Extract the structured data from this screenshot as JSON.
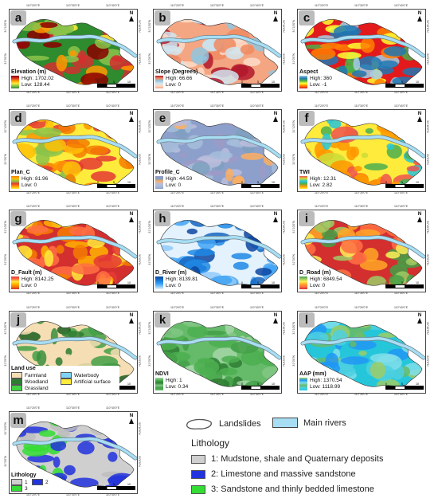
{
  "ticks": {
    "top": [
      "110°20'0\"E",
      "110°30'0\"E",
      "110°40'0\"E"
    ],
    "left": [
      "31°10'0\"N",
      "31°0'0\"N"
    ],
    "right": [
      "31°10'0\"N",
      "31°0'0\"N"
    ],
    "bottom": [
      "110°20'0\"E",
      "110°30'0\"E",
      "110°40'0\"E"
    ]
  },
  "north_label": "N",
  "scale_numbers": [
    "0",
    "5",
    "10"
  ],
  "scale_unit": "km",
  "panels": [
    {
      "letter": "a",
      "title": "Elevation (m)",
      "high": "High: 1702.02",
      "low": "Low: 128.44",
      "colors": [
        "#2e8b2e",
        "#8bc34a",
        "#ffeb3b",
        "#ff9800",
        "#d32f2f",
        "#8b0000"
      ]
    },
    {
      "letter": "b",
      "title": "Slope (Degrees)",
      "high": "High: 66.66",
      "low": "Low: 0",
      "colors": [
        "#f4a582",
        "#fddbc7",
        "#d1e5f0",
        "#92c5de",
        "#ef8a62",
        "#b2182b"
      ]
    },
    {
      "letter": "c",
      "title": "Aspect",
      "high": "High: 360",
      "low": "Low: -1",
      "colors": [
        "#e31a1c",
        "#ff7f00",
        "#ffff33",
        "#4daf4a",
        "#1f78b4",
        "#a6cee3"
      ]
    },
    {
      "letter": "d",
      "title": "Plan_C",
      "high": "High: 81.96",
      "low": "Low: 0",
      "colors": [
        "#ffeb3b",
        "#ff9800",
        "#e53935",
        "#8bc34a",
        "#ffc107",
        "#f57c00"
      ]
    },
    {
      "letter": "e",
      "title": "Profile_C",
      "high": "High: 44.59",
      "low": "Low: 0",
      "colors": [
        "#8da0cb",
        "#a6bddb",
        "#bcbddc",
        "#fdae61",
        "#7fa0c0",
        "#9e9ac8"
      ]
    },
    {
      "letter": "f",
      "title": "TWI",
      "high": "High: 12.31",
      "low": "Low: 2.82",
      "colors": [
        "#ffeb3b",
        "#ff9800",
        "#4caf50",
        "#26c6da",
        "#cddc39",
        "#ef5350"
      ]
    },
    {
      "letter": "g",
      "title": "D_Fault (m)",
      "high": "High: 8142.25",
      "low": "Low: 0",
      "colors": [
        "#d32f2f",
        "#f57c00",
        "#ffb300",
        "#ffeb3b",
        "#ff7043",
        "#e53935"
      ]
    },
    {
      "letter": "h",
      "title": "D_River (m)",
      "high": "High: 8139.81",
      "low": "Low: 0",
      "colors": [
        "#e3f2fd",
        "#90caf9",
        "#42a5f5",
        "#1e88e5",
        "#1565c0",
        "#0d47a1"
      ]
    },
    {
      "letter": "i",
      "title": "D_Road (m)",
      "high": "High: 6849.54",
      "low": "Low: 0",
      "colors": [
        "#d32f2f",
        "#ff7043",
        "#ffa726",
        "#ffee58",
        "#9ccc65",
        "#43a047"
      ]
    },
    {
      "letter": "j",
      "title": "Land use",
      "high": "",
      "low": "",
      "colors": [
        "#f5deb3",
        "#2e7d32",
        "#43a047",
        "#f5deb3",
        "#388e3c",
        "#1b5e20"
      ]
    },
    {
      "letter": "k",
      "title": "NDVI",
      "high": "High: 1",
      "low": "Low: 0.34",
      "colors": [
        "#66bb6a",
        "#43a047",
        "#81c784",
        "#2e7d32",
        "#4caf50",
        "#a5d6a7"
      ]
    },
    {
      "letter": "l",
      "title": "AAP (mm)",
      "high": "High: 1370.54",
      "low": "Low: 1118.99",
      "colors": [
        "#26c6da",
        "#4dd0e1",
        "#66bb6a",
        "#80deea",
        "#2196f3",
        "#9ccc65"
      ]
    },
    {
      "letter": "m",
      "title": "Lithology",
      "high": "",
      "low": "",
      "colors": [
        "#cfcfcf",
        "#2233dd",
        "#33dd33",
        "#2233dd",
        "#bdbdbd",
        "#2233dd"
      ]
    }
  ],
  "landuse_items": [
    {
      "label": "Farmland",
      "color": "#f5deb3"
    },
    {
      "label": "Waterbody",
      "color": "#7fd3f7"
    },
    {
      "label": "Woodland",
      "color": "#2e7d32"
    },
    {
      "label": "Artificial surface",
      "color": "#ffeb3b"
    },
    {
      "label": "Grassland",
      "color": "#43d143"
    }
  ],
  "litho_items": [
    {
      "label": "1",
      "color": "#cfcfcf"
    },
    {
      "label": "2",
      "color": "#2233dd"
    },
    {
      "label": "3",
      "color": "#33dd33"
    }
  ],
  "bottom_legend": {
    "landslides": "Landslides",
    "main_rivers": "Main rivers",
    "lithology_title": "Lithology",
    "items": [
      {
        "label": "1: Mudstone, shale and Quaternary deposits",
        "color": "#cfcfcf"
      },
      {
        "label": "2: Limestone and massive sandstone",
        "color": "#2233dd"
      },
      {
        "label": "3: Sandstone and thinly bedded limestone",
        "color": "#33dd33"
      }
    ]
  }
}
